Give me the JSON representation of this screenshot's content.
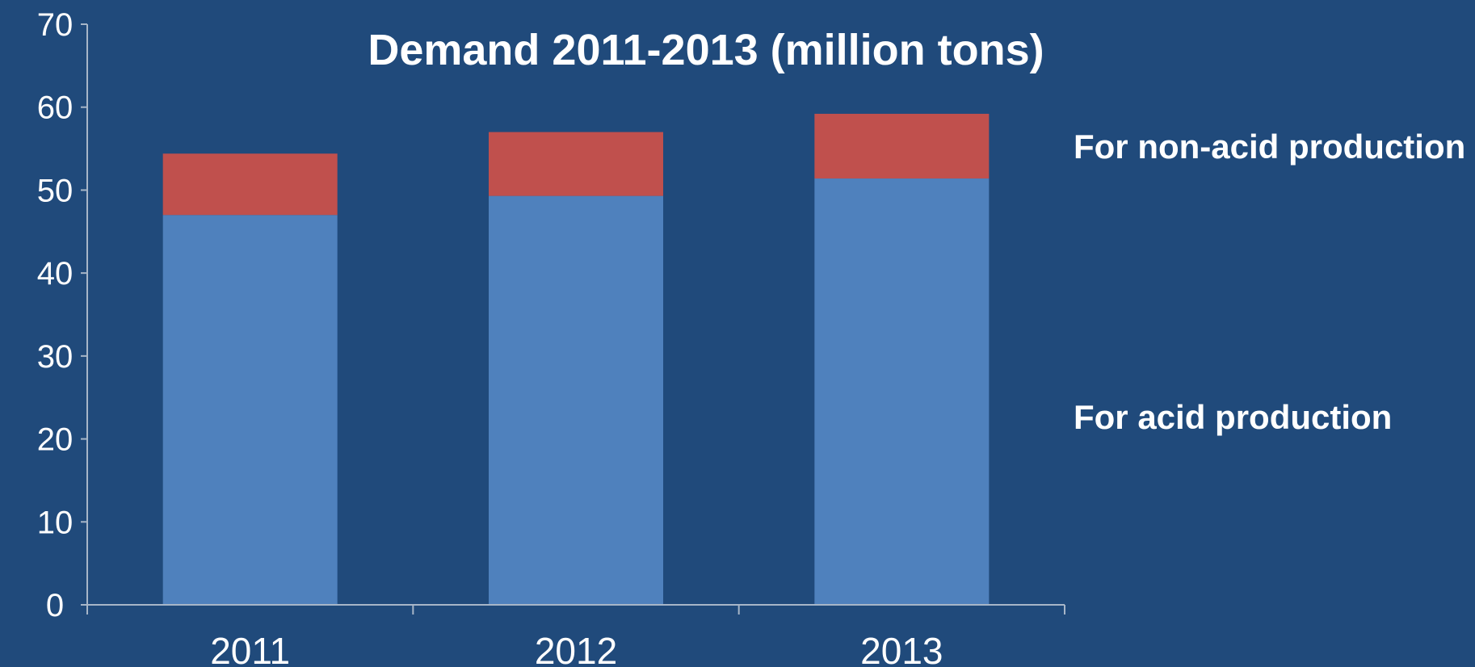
{
  "chart_data": {
    "type": "bar",
    "stacked": true,
    "title": "Demand 2011-2013 (million tons)",
    "xlabel": "",
    "ylabel": "",
    "categories": [
      "2011",
      "2012",
      "2013"
    ],
    "ylim": [
      0,
      70
    ],
    "yticks": [
      "0",
      "10",
      "20",
      "30",
      "40",
      "50",
      "60",
      "70"
    ],
    "grid": false,
    "legend_placement": "right",
    "series": [
      {
        "name": "For acid production",
        "values": [
          47,
          49.3,
          51.4
        ],
        "color": "#4f81bd"
      },
      {
        "name": "For non-acid production",
        "values": [
          7.4,
          7.7,
          7.8
        ],
        "color": "#c0504d"
      }
    ]
  },
  "colors": {
    "background": "#204a7b",
    "axis": "#a7b6c8",
    "text": "#ffffff"
  }
}
